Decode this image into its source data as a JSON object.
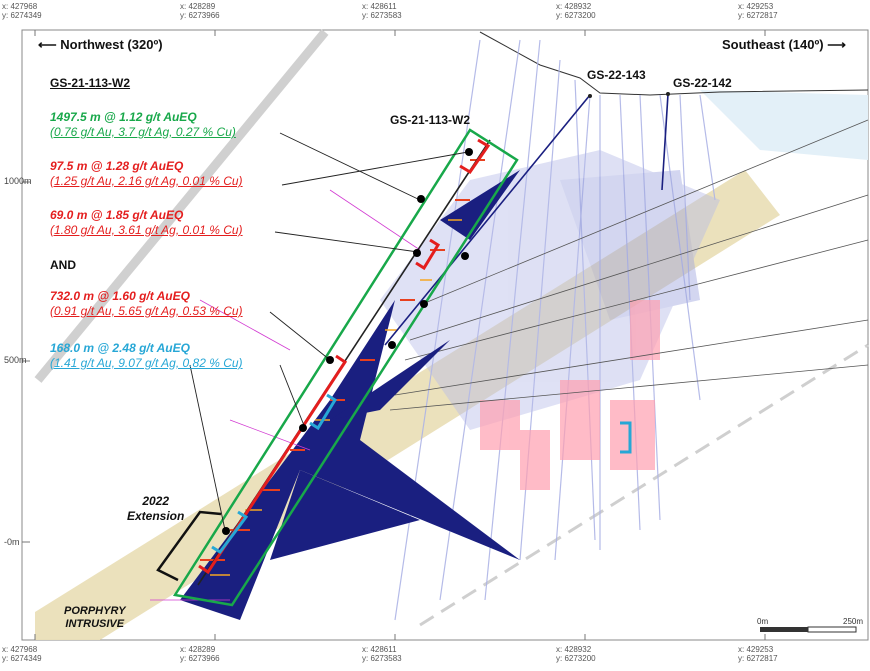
{
  "top_coords": [
    {
      "x": "x: 427968",
      "y": "y: 6274349"
    },
    {
      "x": "x: 428289",
      "y": "y: 6273966"
    },
    {
      "x": "x: 428611",
      "y": "y: 6273583"
    },
    {
      "x": "x: 428932",
      "y": "y: 6273200"
    },
    {
      "x": "x: 429253",
      "y": "y: 6272817"
    }
  ],
  "bottom_coords": [
    {
      "x": "x: 427968",
      "y": "y: 6274349"
    },
    {
      "x": "x: 428289",
      "y": "y: 6273966"
    },
    {
      "x": "x: 428611",
      "y": "y: 6273583"
    },
    {
      "x": "x: 428932",
      "y": "y: 6273200"
    },
    {
      "x": "x: 429253",
      "y": "y: 6272817"
    }
  ],
  "direction": {
    "left": "Northwest (320º)",
    "right": "Southeast (140º)",
    "left_arrow": "⟵",
    "right_arrow": "⟶"
  },
  "elevations": [
    "1000m",
    "500m",
    "-0m"
  ],
  "section_title": "GS-21-113-W2",
  "intercepts": [
    {
      "main": "1497.5 m @ 1.12 g/t AuEQ",
      "sub": "(0.76 g/t Au, 3.7 g/t Ag, 0.27 % Cu)",
      "color": "#18a84a"
    },
    {
      "main": "97.5 m @ 1.28 g/t AuEQ",
      "sub": "(1.25 g/t Au, 2.16 g/t Ag, 0.01 % Cu)",
      "color": "#e41e1e"
    },
    {
      "main": "69.0 m @ 1.85 g/t AuEQ",
      "sub": "(1.80 g/t Au, 3.61 g/t Ag, 0.01 % Cu)",
      "color": "#e41e1e"
    },
    {
      "main": "732.0 m @ 1.60 g/t AuEQ",
      "sub": "(0.91 g/t Au, 5.65 g/t Ag, 0.53 % Cu)",
      "color": "#e41e1e"
    },
    {
      "main": "168.0 m @ 2.48 g/t AuEQ",
      "sub": "(1.41 g/t Au, 9.07 g/t Ag, 0.82 % Cu)",
      "color": "#27a7d6"
    }
  ],
  "and_label": "AND",
  "hole_labels": {
    "w2": "GS-21-113-W2",
    "h143": "GS-22-143",
    "h142": "GS-22-142"
  },
  "extension_label": [
    "2022",
    "Extension"
  ],
  "intrusive_label": [
    "PORPHYRY",
    "INTRUSIVE"
  ],
  "scale": {
    "start": "0m",
    "end": "250m"
  },
  "colors": {
    "intrusive": "#eadfb8",
    "hole_dark": "#1a1f80",
    "green_box": "#18a84a",
    "red_bracket": "#e41e1e",
    "cyan_bracket": "#27a7d6",
    "pink": "#ff9fb0",
    "lavender": "#aeb4e6",
    "magenta": "#d23bd2"
  }
}
